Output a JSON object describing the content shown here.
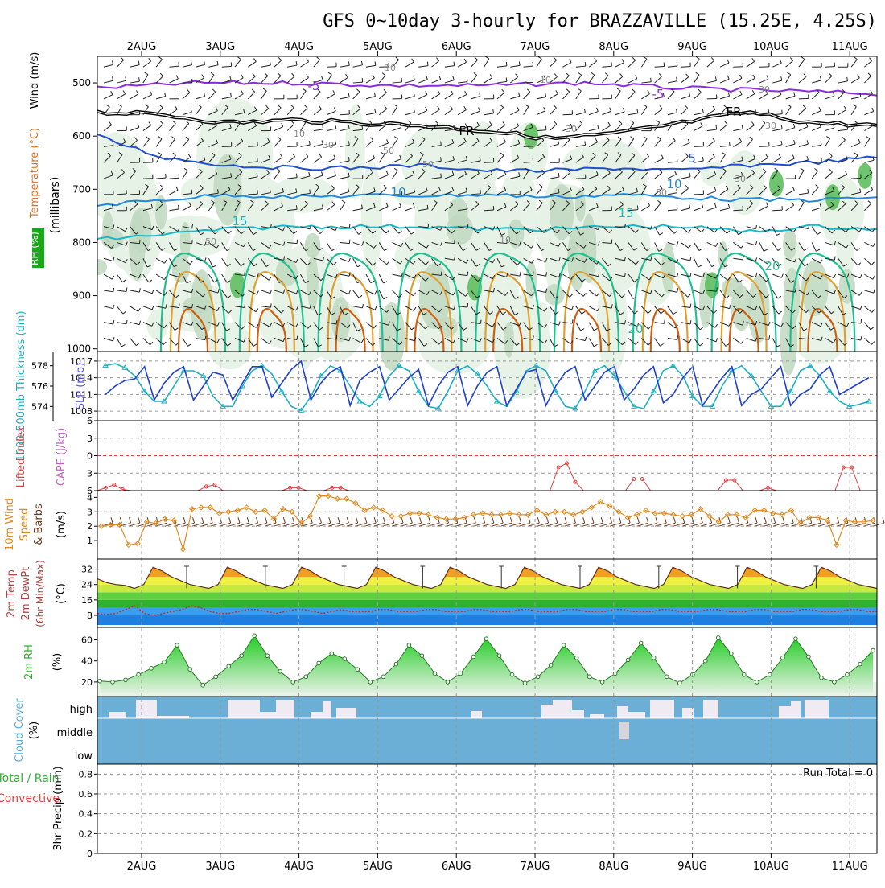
{
  "title": "GFS 0~10day 3-hourly for BRAZZAVILLE (15.25E, 4.25S)",
  "dates": [
    "2AUG",
    "3AUG",
    "4AUG",
    "5AUG",
    "6AUG",
    "7AUG",
    "8AUG",
    "9AUG",
    "10AUG",
    "11AUG"
  ],
  "colors": {
    "rh_light": "#e6f2e6",
    "rh_mid": "#c0d8c0",
    "rh_dark": "#8fb08f",
    "rh_green": "#5fbf5f",
    "temp_neg": "#8a2be2",
    "temp_0": "#000000",
    "temp_5": "#1f4fd0",
    "temp_10": "#1f8ae0",
    "temp_15": "#17b8c8",
    "temp_20": "#1fbf8f",
    "temp_25": "#e0a030",
    "temp_30": "#d06010",
    "slp": "#1f3fcf",
    "thickness": "#1fb0c0",
    "lifted": "#e04040",
    "wind10": "#e08a20",
    "barb": "#6b3a1f",
    "cloud_blue": "#6baed6",
    "rh2m": "#44cc44"
  },
  "chart_data": [
    {
      "panel": "pressure-cross-section",
      "type": "heatmap",
      "ylabel_parts": [
        "RH (%)",
        "Temperature (°C)",
        "Wind (m/s)"
      ],
      "ylabel_unit": "(millibars)",
      "y_ticks": [
        500,
        600,
        700,
        800,
        900,
        1000
      ],
      "ylim": [
        450,
        1005
      ],
      "contour_labels": [
        "-5",
        "-5",
        "FR",
        "FR",
        "5",
        "10",
        "10",
        "15",
        "15",
        "20",
        "20",
        "10",
        "10",
        "10",
        "30",
        "30",
        "30",
        "50",
        "50",
        "50",
        "50",
        "10",
        "30",
        "30"
      ],
      "isotherms": [
        {
          "label": "-5",
          "points": [
            [
              0,
              510
            ],
            [
              30,
              500
            ],
            [
              60,
              500
            ],
            [
              90,
              505
            ],
            [
              120,
              505
            ],
            [
              150,
              500
            ],
            [
              180,
              510
            ],
            [
              210,
              515
            ],
            [
              240,
              520
            ]
          ]
        },
        {
          "label": "FR",
          "points": [
            [
              0,
              555
            ],
            [
              20,
              560
            ],
            [
              40,
              575
            ],
            [
              60,
              570
            ],
            [
              80,
              575
            ],
            [
              100,
              580
            ],
            [
              120,
              590
            ],
            [
              140,
              605
            ],
            [
              160,
              595
            ],
            [
              180,
              575
            ],
            [
              200,
              555
            ],
            [
              220,
              575
            ],
            [
              240,
              580
            ]
          ]
        },
        {
          "label": "5",
          "points": [
            [
              0,
              600
            ],
            [
              20,
              640
            ],
            [
              40,
              655
            ],
            [
              60,
              660
            ],
            [
              80,
              660
            ],
            [
              100,
              655
            ],
            [
              120,
              665
            ],
            [
              140,
              665
            ],
            [
              160,
              660
            ],
            [
              180,
              665
            ],
            [
              200,
              655
            ],
            [
              220,
              650
            ],
            [
              240,
              640
            ]
          ]
        },
        {
          "label": "10",
          "points": [
            [
              0,
              730
            ],
            [
              20,
              720
            ],
            [
              40,
              710
            ],
            [
              60,
              715
            ],
            [
              80,
              712
            ],
            [
              100,
              712
            ],
            [
              120,
              710
            ],
            [
              140,
              715
            ],
            [
              160,
              710
            ],
            [
              180,
              715
            ],
            [
              200,
              720
            ],
            [
              220,
              720
            ],
            [
              240,
              715
            ]
          ]
        },
        {
          "label": "15",
          "points": [
            [
              0,
              795
            ],
            [
              20,
              785
            ],
            [
              40,
              775
            ],
            [
              60,
              770
            ],
            [
              80,
              770
            ],
            [
              100,
              770
            ],
            [
              120,
              775
            ],
            [
              140,
              775
            ],
            [
              160,
              770
            ],
            [
              180,
              770
            ],
            [
              200,
              780
            ],
            [
              220,
              770
            ],
            [
              240,
              775
            ]
          ]
        }
      ]
    },
    {
      "panel": "slp-thickness",
      "type": "line",
      "ylabel": "SLP (mb)",
      "ylabel2": "1000-500mb Thickness (dm)",
      "y_ticks": [
        1008,
        1011,
        1014,
        1017
      ],
      "y2_ticks": [
        574,
        576,
        578
      ],
      "series": [
        {
          "name": "SLP",
          "axis": "slp",
          "values": [
            1011,
            1012.5,
            1013.5,
            1013.8,
            1016,
            1010,
            1013,
            1015,
            1016,
            1010,
            1012.5,
            1015,
            1014.5,
            1010,
            1013,
            1016,
            1016,
            1010.5,
            1013,
            1015.5,
            1017,
            1010,
            1013,
            1015,
            1016,
            1009,
            1013.5,
            1015,
            1016,
            1010,
            1012,
            1014,
            1015.5,
            1009,
            1012.5,
            1015,
            1016,
            1009,
            1012.5,
            1015,
            1016,
            1009,
            1012,
            1015,
            1015.5,
            1009,
            1012.5,
            1015,
            1016,
            1010,
            1012.5,
            1015,
            1016,
            1010,
            1012,
            1014.5,
            1016,
            1009.5,
            1011,
            1014,
            1016,
            1009,
            1011.5,
            1014,
            1016,
            1009,
            1011,
            1012,
            1014,
            1016,
            1009,
            1011,
            1012,
            1014.5,
            1016,
            1011,
            1012,
            1013,
            1014
          ]
        },
        {
          "name": "Thickness",
          "axis": "thk",
          "values": [
            578,
            578.2,
            577.8,
            577,
            575.5,
            574.5,
            574.5,
            576,
            577.5,
            577.5,
            577,
            575,
            574,
            574,
            576,
            577.5,
            578,
            577.2,
            575.5,
            574,
            573.6,
            575,
            577,
            578,
            577.5,
            576,
            574.5,
            574,
            575,
            577,
            578,
            577.5,
            575.5,
            574,
            573.8,
            575.5,
            577.5,
            578,
            577.2,
            576,
            574.5,
            574,
            575.5,
            577.5,
            578,
            577.5,
            575.5,
            574,
            573.8,
            575.5,
            577.5,
            578,
            577,
            575.5,
            574,
            573.8,
            575.5,
            577.5,
            578,
            577,
            575,
            574,
            574,
            576,
            577.5,
            578,
            577,
            575.5,
            574,
            574,
            575.5,
            577.5,
            578,
            577,
            575.5,
            574.5,
            574,
            574.2,
            574.5
          ]
        }
      ]
    },
    {
      "panel": "lifted-cape",
      "type": "line",
      "ylabel": "Lifted Index",
      "ylabel2": "CAPE (J/kg)",
      "y_ticks": [
        -6,
        -3,
        0,
        3,
        6
      ],
      "series": [
        {
          "name": "Lifted Index",
          "values": [
            6,
            5.5,
            5,
            5.8,
            6,
            6,
            6,
            6,
            6,
            6,
            6,
            6,
            6,
            5.3,
            5,
            6,
            6,
            6,
            6,
            6,
            6,
            6,
            6,
            5.5,
            5.5,
            6,
            6,
            6,
            5.5,
            5.5,
            6,
            6,
            6,
            6,
            6,
            6,
            6,
            6,
            6,
            6,
            6,
            6,
            6,
            6,
            6,
            6,
            6,
            6,
            6,
            6,
            6,
            6,
            6,
            6,
            6,
            2,
            1.3,
            4.5,
            6,
            6,
            6,
            6,
            6,
            6,
            4,
            4,
            6,
            6,
            6,
            6,
            6,
            6,
            6,
            6,
            6,
            4.2,
            4.2,
            6,
            6,
            6,
            5.5,
            6,
            6,
            6,
            6,
            6,
            6,
            6,
            6,
            2,
            2,
            6,
            6,
            6
          ]
        }
      ]
    },
    {
      "panel": "wind10m",
      "type": "line",
      "ylabel": "10m Wind Speed & Barbs (m/s)",
      "y_ticks": [
        1,
        2,
        3,
        4
      ],
      "series": [
        {
          "name": "10m Wind Speed",
          "values": [
            2,
            2.1,
            2.1,
            0.7,
            0.8,
            2.3,
            2.2,
            2.5,
            2.4,
            0.4,
            3.2,
            3.3,
            3.3,
            2.9,
            3,
            3.1,
            3.3,
            3,
            3.1,
            2.5,
            3.2,
            3,
            2.2,
            2.7,
            4.1,
            4.1,
            3.9,
            3.9,
            3.6,
            3.1,
            3.3,
            3.1,
            2.7,
            2.7,
            2.9,
            2.9,
            2.8,
            2.6,
            2.5,
            2.5,
            2.6,
            2.8,
            2.9,
            2.8,
            2.8,
            2.9,
            2.8,
            2.8,
            3.1,
            2.8,
            3,
            3,
            2.8,
            3,
            3.3,
            3.7,
            3.4,
            3,
            2.6,
            2.8,
            3.1,
            2.9,
            2.9,
            2.8,
            2.7,
            2.8,
            3.2,
            2.7,
            2.3,
            2.8,
            2.8,
            2.6,
            3.1,
            3.1,
            2.9,
            2.8,
            3.1,
            2.2,
            2.6,
            2.6,
            2.4,
            0.7,
            2.4,
            2.3,
            2.3,
            2.4
          ]
        }
      ]
    },
    {
      "panel": "temp2m",
      "type": "area",
      "ylabel": "2m Temp 2m DewPt (6hr Min/Max) (°C)",
      "y_ticks": [
        8,
        16,
        24,
        32
      ],
      "series": [
        {
          "name": "2m Temp",
          "values": [
            27,
            25,
            24,
            23.5,
            22,
            24,
            33,
            31,
            28,
            26,
            24,
            23,
            22,
            24,
            33,
            31,
            28,
            26,
            24,
            23,
            22,
            24,
            33,
            31,
            28,
            26,
            24,
            23,
            22,
            24,
            33,
            31,
            28,
            26,
            24,
            23,
            22,
            24,
            33,
            31,
            28,
            26,
            24,
            23,
            22,
            24,
            33,
            31,
            28,
            26,
            24,
            23,
            22,
            24,
            33,
            31,
            28,
            26,
            24,
            23,
            22,
            24,
            33,
            31,
            28,
            26,
            24,
            23,
            22,
            24,
            33,
            31,
            28,
            26,
            24,
            23,
            22,
            24,
            33,
            31,
            28,
            26,
            24,
            23,
            22
          ]
        },
        {
          "name": "2m DewPt",
          "values": [
            9,
            8.5,
            9,
            11,
            13,
            9,
            8,
            9,
            10,
            11,
            13,
            12,
            10,
            9,
            9,
            10,
            11,
            11,
            10,
            9,
            10,
            11,
            11,
            10,
            9,
            10,
            11,
            10,
            10,
            10,
            11,
            11,
            10,
            10,
            10,
            11,
            11,
            10,
            10,
            10,
            11,
            11,
            10,
            10,
            10,
            11,
            11,
            10,
            10,
            10,
            11,
            11,
            10,
            10,
            10,
            11,
            11,
            10,
            10,
            10,
            11,
            11,
            10,
            10,
            10,
            11,
            11,
            10,
            10,
            10,
            11,
            11,
            10,
            10,
            10,
            11,
            11,
            10,
            10,
            10,
            11,
            11,
            10,
            10
          ]
        }
      ]
    },
    {
      "panel": "rh2m",
      "type": "area",
      "ylabel": "2m RH (%)",
      "y_ticks": [
        20,
        40,
        60
      ],
      "series": [
        {
          "name": "2m RH",
          "values": [
            21,
            20,
            22,
            27,
            33,
            39,
            55,
            32,
            17,
            25,
            35,
            45,
            64,
            45,
            30,
            20,
            25,
            38,
            47,
            42,
            32,
            20,
            25,
            37,
            55,
            45,
            28,
            20,
            28,
            44,
            61,
            45,
            27,
            19,
            25,
            36,
            55,
            43,
            25,
            20,
            28,
            41,
            57,
            43,
            25,
            19,
            27,
            40,
            62,
            47,
            27,
            20,
            27,
            43,
            61,
            44,
            24,
            20,
            27,
            37,
            50
          ]
        }
      ]
    },
    {
      "panel": "cloud-cover",
      "type": "heatmap",
      "ylabel": "Cloud Cover (%)",
      "y_tick_labels": [
        "high",
        "middle",
        "low"
      ]
    },
    {
      "panel": "precip",
      "type": "bar",
      "ylabel": "3hr Precip (mm)",
      "ylabel_total": "Total / Rain",
      "ylabel_conv": "Convective",
      "y_ticks": [
        0,
        0.2,
        0.4,
        0.6,
        0.8
      ],
      "run_total": "Run Total = 0",
      "values": []
    }
  ]
}
